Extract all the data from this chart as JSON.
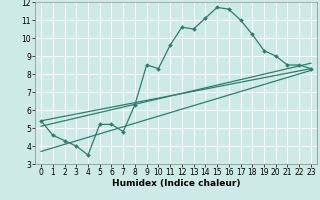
{
  "xlabel": "Humidex (Indice chaleur)",
  "bg_color": "#ceeae6",
  "grid_color": "#ffffff",
  "line_color": "#2e7d6e",
  "xlim": [
    -0.5,
    23.5
  ],
  "ylim": [
    3,
    12
  ],
  "xticks": [
    0,
    1,
    2,
    3,
    4,
    5,
    6,
    7,
    8,
    9,
    10,
    11,
    12,
    13,
    14,
    15,
    16,
    17,
    18,
    19,
    20,
    21,
    22,
    23
  ],
  "yticks": [
    3,
    4,
    5,
    6,
    7,
    8,
    9,
    10,
    11,
    12
  ],
  "line1_x": [
    0,
    1,
    2,
    3,
    4,
    5,
    6,
    7,
    8,
    9,
    10,
    11,
    12,
    13,
    14,
    15,
    16,
    17,
    18,
    19,
    20,
    21,
    22,
    23
  ],
  "line1_y": [
    5.4,
    4.6,
    4.3,
    4.0,
    3.5,
    5.2,
    5.2,
    4.8,
    6.3,
    8.5,
    8.3,
    9.6,
    10.6,
    10.5,
    11.1,
    11.7,
    11.6,
    11.0,
    10.2,
    9.3,
    9.0,
    8.5,
    8.5,
    8.3
  ],
  "line2_x": [
    0,
    23
  ],
  "line2_y": [
    5.1,
    8.6
  ],
  "line3_x": [
    0,
    23
  ],
  "line3_y": [
    5.4,
    8.3
  ],
  "line4_x": [
    0,
    23
  ],
  "line4_y": [
    3.7,
    8.2
  ],
  "tick_fontsize": 5.5,
  "xlabel_fontsize": 6.5,
  "linewidth": 0.9,
  "marker_size": 2.0
}
